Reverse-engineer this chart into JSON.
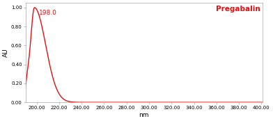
{
  "title": "Pregabalin",
  "xlabel": "nm",
  "ylabel": "AU",
  "peak_label": "198.0",
  "peak_nm": 198.0,
  "peak_au": 1.0,
  "xmin": 190,
  "xmax": 401,
  "ymin": 0.0,
  "ymax": 1.05,
  "xticks": [
    200,
    220,
    240,
    260,
    280,
    300,
    320,
    340,
    360,
    380,
    400
  ],
  "yticks": [
    0.0,
    0.2,
    0.4,
    0.6,
    0.8,
    1.0
  ],
  "line_color": "#dd1111",
  "annotation_color": "#dd1111",
  "title_color": "#dd1111",
  "bg_color": "#ffffff",
  "axes_bg_color": "#ffffff",
  "tick_label_fontsize": 5.0,
  "axis_label_fontsize": 6.5,
  "title_fontsize": 7.5,
  "annotation_fontsize": 6.5
}
